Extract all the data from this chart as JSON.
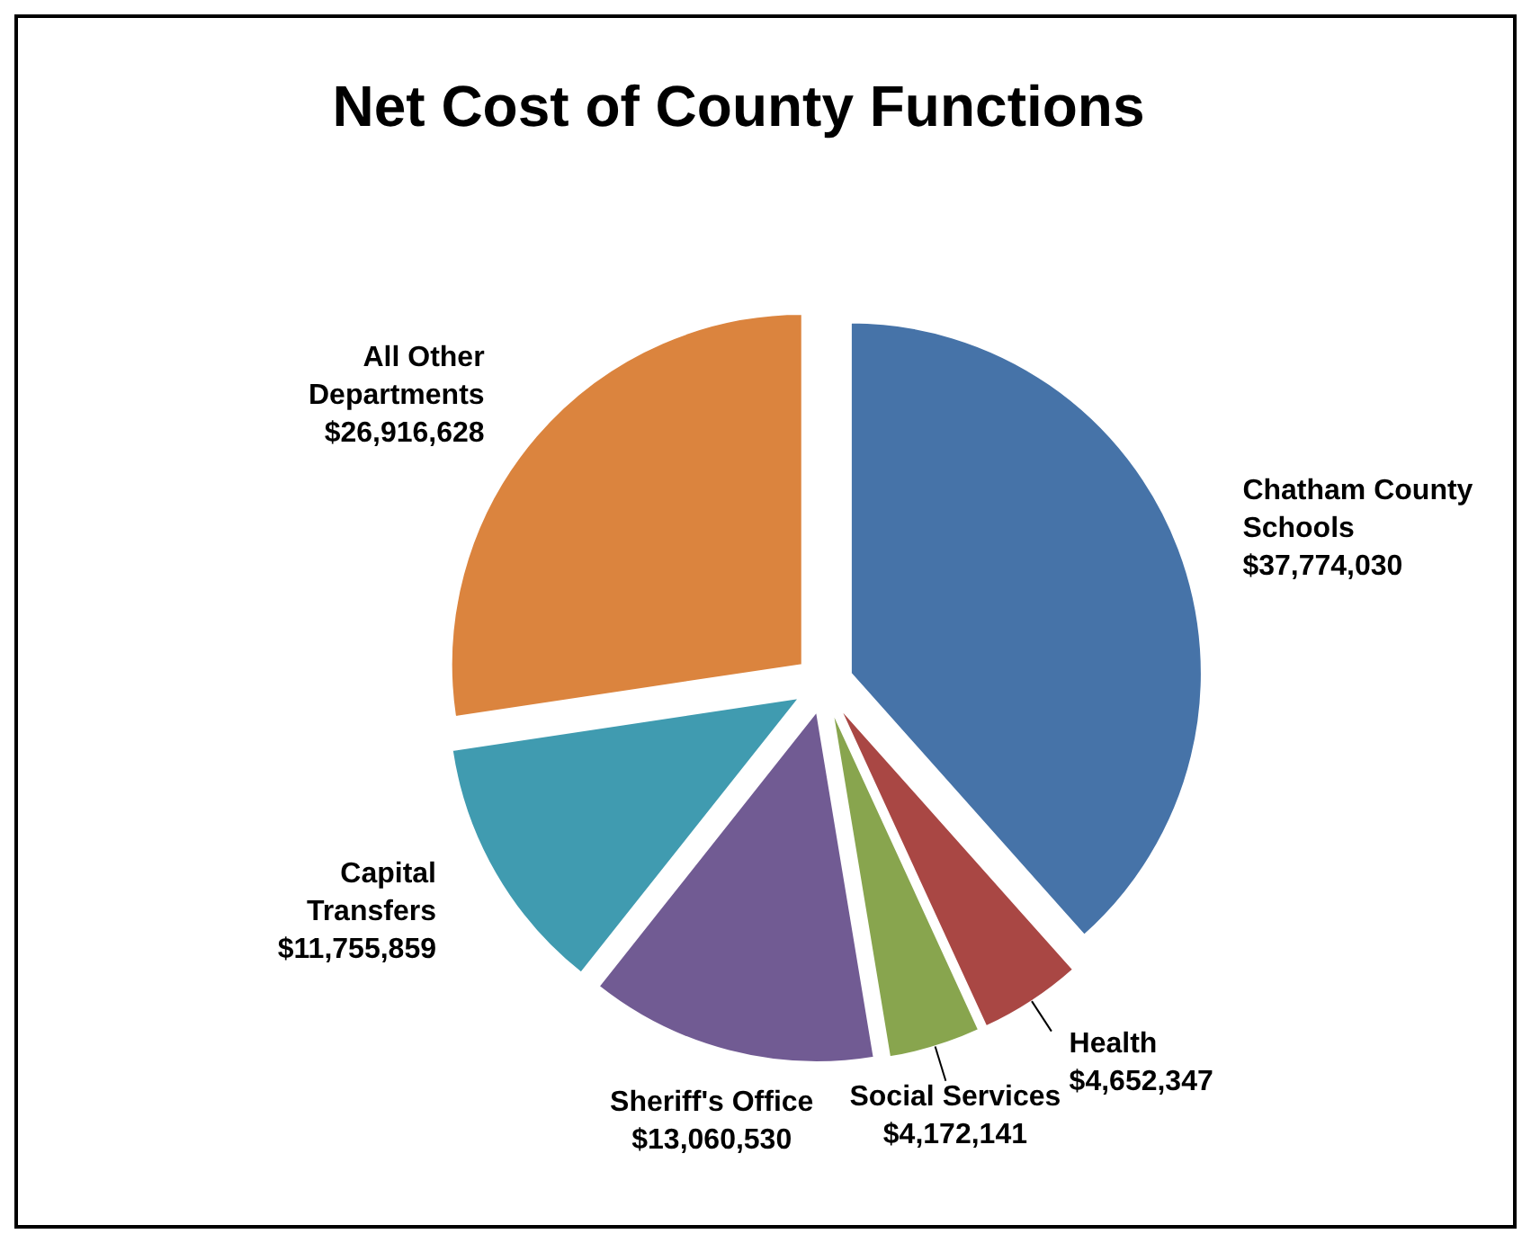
{
  "chart_data": {
    "type": "pie",
    "title": "Net Cost of County Functions",
    "categories": [
      "Chatham County Schools",
      "Health",
      "Social Services",
      "Sheriff's Office",
      "Capital Transfers",
      "All Other Departments"
    ],
    "values": [
      37774030,
      4652347,
      4172141,
      13060530,
      11755859,
      26916628
    ],
    "value_labels": [
      "$37,774,030",
      "$4,652,347",
      "$4,172,141",
      "$13,060,530",
      "$11,755,859",
      "$26,916,628"
    ],
    "colors": [
      "#4673a8",
      "#a94744",
      "#88a54e",
      "#715b93",
      "#409bb0",
      "#db843e"
    ]
  }
}
